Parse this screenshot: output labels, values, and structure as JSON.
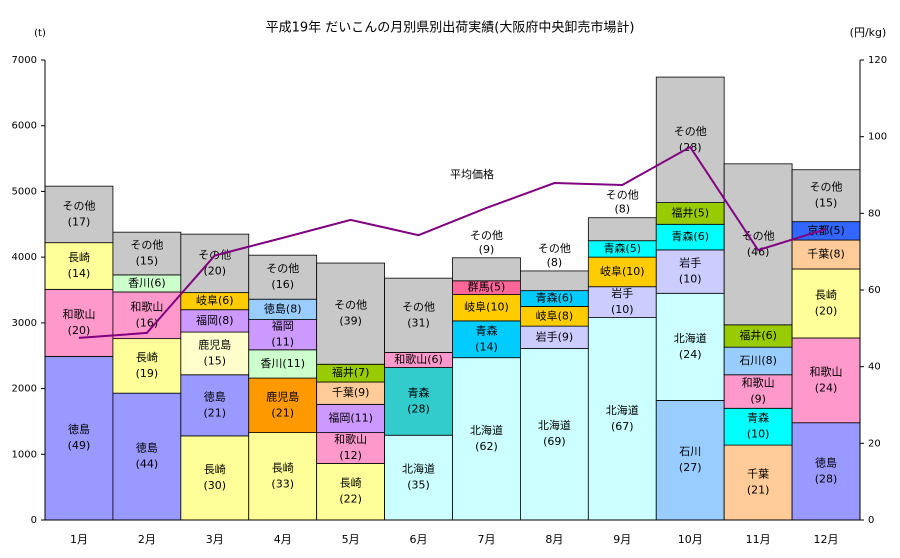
{
  "chart_data": {
    "type": "bar",
    "title": "平成19年 だいこんの月別県別出荷実績(大阪府中央卸売市場計)",
    "y_label": "(t)",
    "y2_label": "(円/kg)",
    "categories": [
      "1月",
      "2月",
      "3月",
      "4月",
      "5月",
      "6月",
      "7月",
      "8月",
      "9月",
      "10月",
      "11月",
      "12月"
    ],
    "ylim": [
      0,
      7000
    ],
    "yticks": [
      0,
      1000,
      2000,
      3000,
      4000,
      5000,
      6000,
      7000
    ],
    "y2lim": [
      0,
      120
    ],
    "y2ticks": [
      0,
      20,
      40,
      60,
      80,
      100,
      120
    ],
    "stacks": [
      [
        {
          "name": "徳島",
          "label": "(49)",
          "value": 2490,
          "color": "#9999ff"
        },
        {
          "name": "和歌山",
          "label": "(20)",
          "value": 1020,
          "color": "#ff99cc"
        },
        {
          "name": "長崎",
          "label": "(14)",
          "value": 710,
          "color": "#ffff99"
        },
        {
          "name": "その他",
          "label": "(17)",
          "value": 860,
          "color": "#c8c8c8"
        }
      ],
      [
        {
          "name": "徳島",
          "label": "(44)",
          "value": 1930,
          "color": "#9999ff"
        },
        {
          "name": "長崎",
          "label": "(19)",
          "value": 830,
          "color": "#ffff99"
        },
        {
          "name": "和歌山",
          "label": "(16)",
          "value": 710,
          "color": "#ff99cc"
        },
        {
          "name": "香川",
          "label": "(6)",
          "value": 260,
          "color": "#ccffcc"
        },
        {
          "name": "その他",
          "label": "(15)",
          "value": 650,
          "color": "#c8c8c8"
        }
      ],
      [
        {
          "name": "長崎",
          "label": "(30)",
          "value": 1280,
          "color": "#ffff99"
        },
        {
          "name": "徳島",
          "label": "(21)",
          "value": 930,
          "color": "#9999ff"
        },
        {
          "name": "鹿児島",
          "label": "(15)",
          "value": 650,
          "color": "#ffffcc"
        },
        {
          "name": "福岡",
          "label": "(8)",
          "value": 340,
          "color": "#cc99ff"
        },
        {
          "name": "岐阜",
          "label": "(6)",
          "value": 260,
          "color": "#ffcc00"
        },
        {
          "name": "その他",
          "label": "(20)",
          "value": 890,
          "color": "#c8c8c8"
        }
      ],
      [
        {
          "name": "長崎",
          "label": "(33)",
          "value": 1330,
          "color": "#ffff99"
        },
        {
          "name": "鹿児島",
          "label": "(21)",
          "value": 830,
          "color": "#ff9900"
        },
        {
          "name": "香川",
          "label": "(11)",
          "value": 430,
          "color": "#ccffcc"
        },
        {
          "name": "福岡",
          "label": "(11)",
          "value": 460,
          "color": "#cc99ff"
        },
        {
          "name": "徳島",
          "label": "(8)",
          "value": 310,
          "color": "#99ccff"
        },
        {
          "name": "その他",
          "label": "(16)",
          "value": 670,
          "color": "#c8c8c8"
        }
      ],
      [
        {
          "name": "長崎",
          "label": "(22)",
          "value": 860,
          "color": "#ffff99"
        },
        {
          "name": "和歌山",
          "label": "(12)",
          "value": 470,
          "color": "#ff99cc"
        },
        {
          "name": "福岡",
          "label": "(11)",
          "value": 430,
          "color": "#cc99ff"
        },
        {
          "name": "千葉",
          "label": "(9)",
          "value": 340,
          "color": "#ffcc99"
        },
        {
          "name": "福井",
          "label": "(7)",
          "value": 270,
          "color": "#99cc00"
        },
        {
          "name": "その他",
          "label": "(39)",
          "value": 1540,
          "color": "#c8c8c8"
        }
      ],
      [
        {
          "name": "北海道",
          "label": "(35)",
          "value": 1290,
          "color": "#ccffff"
        },
        {
          "name": "青森",
          "label": "(28)",
          "value": 1030,
          "color": "#33cccc"
        },
        {
          "name": "和歌山",
          "label": "(6)",
          "value": 230,
          "color": "#ff99cc"
        },
        {
          "name": "その他",
          "label": "(31)",
          "value": 1130,
          "color": "#c8c8c8"
        }
      ],
      [
        {
          "name": "北海道",
          "label": "(62)",
          "value": 2470,
          "color": "#ccffff"
        },
        {
          "name": "青森",
          "label": "(14)",
          "value": 560,
          "color": "#00ccff"
        },
        {
          "name": "岐阜",
          "label": "(10)",
          "value": 400,
          "color": "#ffcc00"
        },
        {
          "name": "群馬",
          "label": "(5)",
          "value": 210,
          "color": "#ff6699"
        },
        {
          "name": "その他",
          "label": "(9)",
          "value": 350,
          "color": "#c8c8c8"
        }
      ],
      [
        {
          "name": "北海道",
          "label": "(69)",
          "value": 2610,
          "color": "#ccffff"
        },
        {
          "name": "岩手",
          "label": "(9)",
          "value": 340,
          "color": "#ccccff"
        },
        {
          "name": "岐阜",
          "label": "(8)",
          "value": 300,
          "color": "#ffcc00"
        },
        {
          "name": "青森",
          "label": "(6)",
          "value": 240,
          "color": "#00ccff"
        },
        {
          "name": "その他",
          "label": "(8)",
          "value": 300,
          "color": "#c8c8c8"
        }
      ],
      [
        {
          "name": "北海道",
          "label": "(67)",
          "value": 3080,
          "color": "#ccffff"
        },
        {
          "name": "岩手",
          "label": "(10)",
          "value": 470,
          "color": "#ccccff"
        },
        {
          "name": "岐阜",
          "label": "(10)",
          "value": 450,
          "color": "#ffcc00"
        },
        {
          "name": "青森",
          "label": "(5)",
          "value": 250,
          "color": "#00ffff"
        },
        {
          "name": "その他",
          "label": "(8)",
          "value": 350,
          "color": "#c8c8c8"
        }
      ],
      [
        {
          "name": "石川",
          "label": "(27)",
          "value": 1820,
          "color": "#99ccff"
        },
        {
          "name": "北海道",
          "label": "(24)",
          "value": 1630,
          "color": "#ccffff"
        },
        {
          "name": "岩手",
          "label": "(10)",
          "value": 660,
          "color": "#ccccff"
        },
        {
          "name": "青森",
          "label": "(6)",
          "value": 390,
          "color": "#00ffff"
        },
        {
          "name": "福井",
          "label": "(5)",
          "value": 330,
          "color": "#99cc00"
        },
        {
          "name": "その他",
          "label": "(28)",
          "value": 1910,
          "color": "#c8c8c8"
        }
      ],
      [
        {
          "name": "千葉",
          "label": "(21)",
          "value": 1140,
          "color": "#ffcc99"
        },
        {
          "name": "青森",
          "label": "(10)",
          "value": 560,
          "color": "#00ffff"
        },
        {
          "name": "和歌山",
          "label": "(9)",
          "value": 510,
          "color": "#ff99cc"
        },
        {
          "name": "石川",
          "label": "(8)",
          "value": 420,
          "color": "#99ccff"
        },
        {
          "name": "福井",
          "label": "(6)",
          "value": 340,
          "color": "#99cc00"
        },
        {
          "name": "その他",
          "label": "(46)",
          "value": 2450,
          "color": "#c8c8c8"
        }
      ],
      [
        {
          "name": "徳島",
          "label": "(28)",
          "value": 1480,
          "color": "#9999ff"
        },
        {
          "name": "和歌山",
          "label": "(24)",
          "value": 1290,
          "color": "#ff99cc"
        },
        {
          "name": "長崎",
          "label": "(20)",
          "value": 1050,
          "color": "#ffff99"
        },
        {
          "name": "千葉",
          "label": "(8)",
          "value": 440,
          "color": "#ffcc99"
        },
        {
          "name": "京都",
          "label": "(5)",
          "value": 280,
          "color": "#3366ff"
        },
        {
          "name": "その他",
          "label": "(15)",
          "value": 790,
          "color": "#c8c8c8"
        }
      ]
    ],
    "line": {
      "name": "平均価格",
      "color": "#800080",
      "axis": "y2",
      "values": [
        47.5,
        48.8,
        69,
        73.6,
        78.3,
        74.3,
        81.4,
        87.9,
        87.4,
        97.3,
        70.4,
        75.9
      ]
    }
  }
}
